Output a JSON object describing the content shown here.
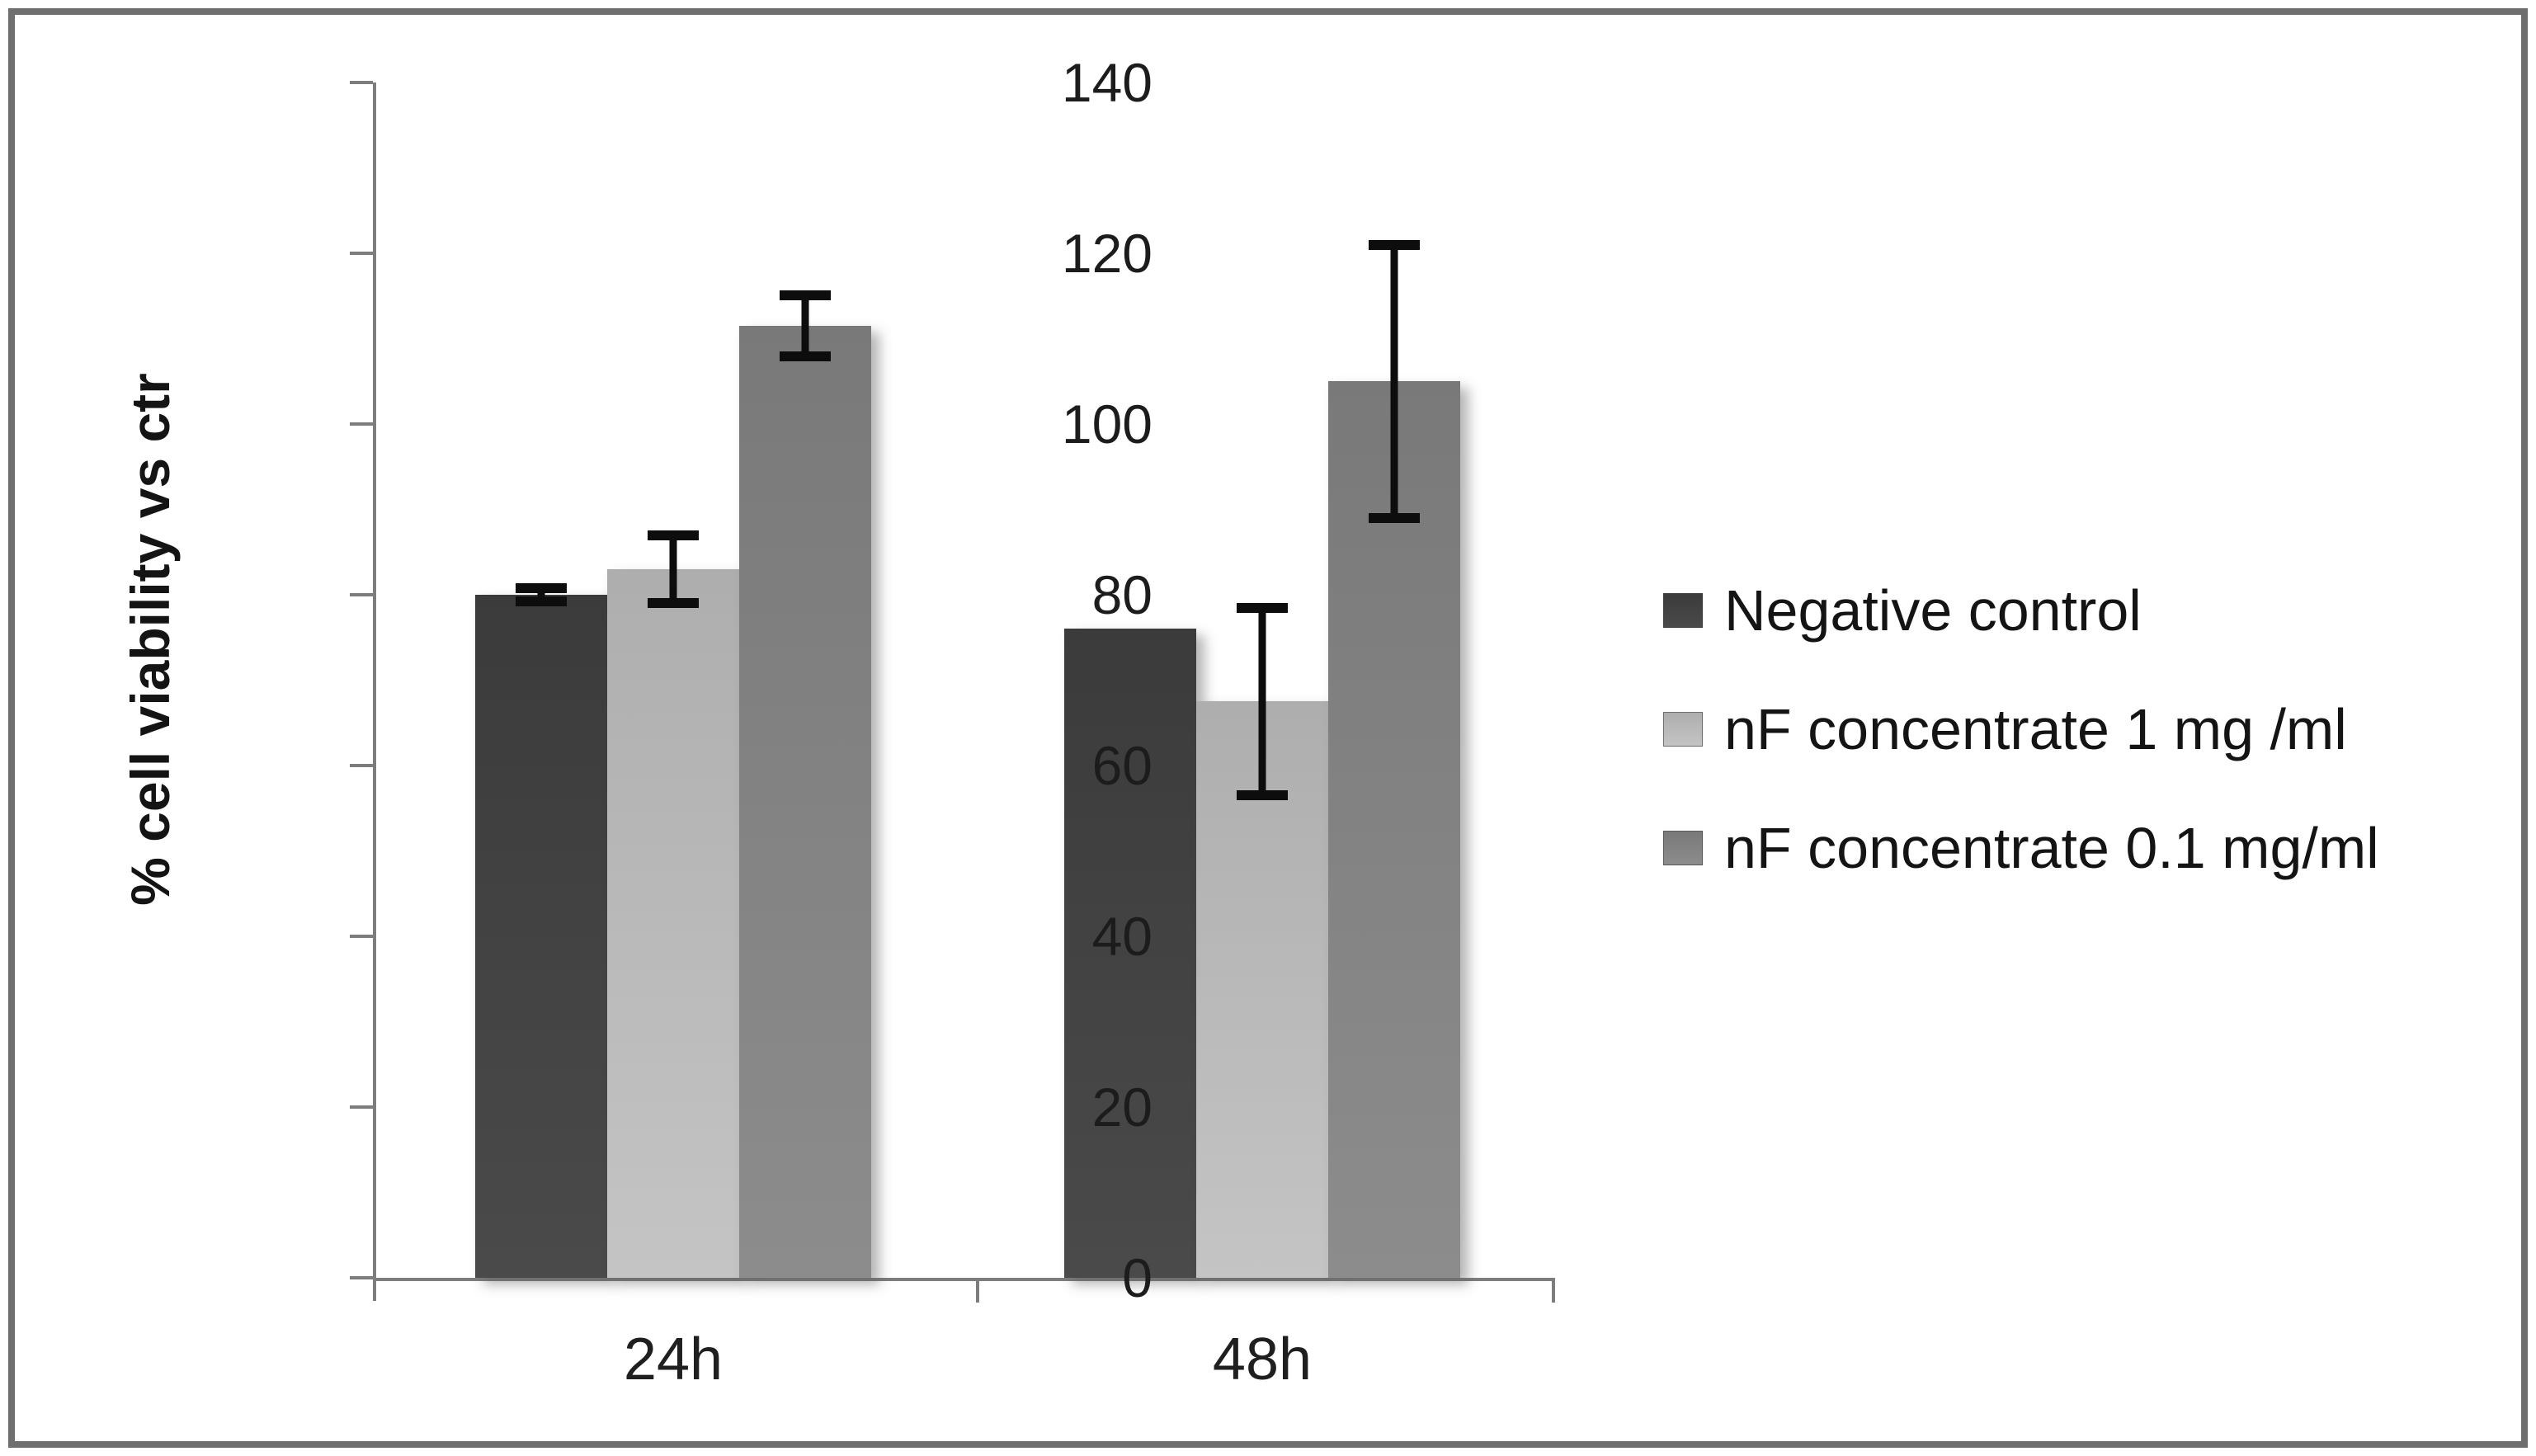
{
  "figure_border_color": "#6e6e6e",
  "axis_color": "#7d7d7d",
  "text_color": "#1c1c1c",
  "error_bar_color": "#0d0d0d",
  "chart_data": {
    "type": "bar",
    "title": "",
    "ylabel": "% cell viability vs ctr",
    "xlabel": "",
    "categories": [
      "24h",
      "48h"
    ],
    "series": [
      {
        "name": "Negative control",
        "values": [
          80,
          76
        ],
        "error_plus_minus": [
          0.8,
          null
        ],
        "color_top": "#3b3b3b",
        "color_bottom": "#4a4a4a"
      },
      {
        "name": "nF concentrate 1 mg /ml",
        "values": [
          83,
          67.5
        ],
        "error_plus_minus": [
          4,
          11
        ],
        "color_top": "#aeaeae",
        "color_bottom": "#c4c4c4"
      },
      {
        "name": "nF concentrate 0.1 mg/ml",
        "values": [
          111.5,
          105
        ],
        "error_plus_minus": [
          3.6,
          16
        ],
        "color_top": "#797979",
        "color_bottom": "#8c8c8c"
      }
    ],
    "ylim": [
      0,
      140
    ],
    "ytick_step": 20,
    "ytick_labels": [
      "0",
      "20",
      "40",
      "60",
      "80",
      "100",
      "120",
      "140"
    ],
    "grid": false,
    "legend_position": "right"
  }
}
